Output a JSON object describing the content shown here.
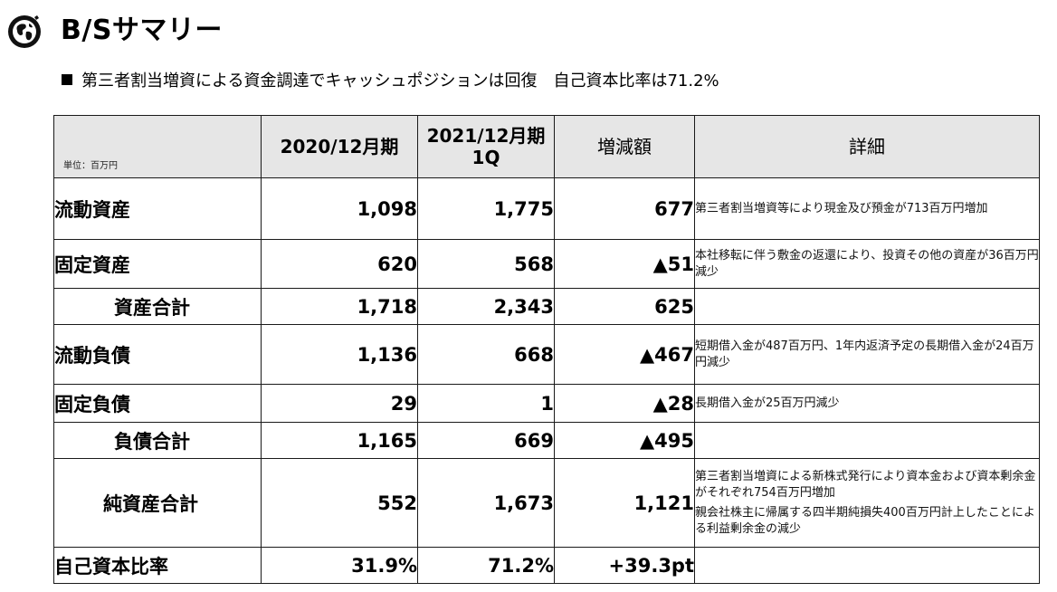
{
  "header": {
    "title": "B/Sサマリー",
    "subtitle": "第三者割当増資による資金調達でキャッシュポジションは回復　自己資本比率は71.2%"
  },
  "table": {
    "unit_label": "単位：百万円",
    "headers": {
      "col1": "2020/12月期",
      "col2_line1": "2021/12月期",
      "col2_line2": "1Q",
      "col3": "増減額",
      "col4": "詳細"
    },
    "rows": [
      {
        "item": "流動資産",
        "v2020": "1,098",
        "v2021": "1,775",
        "diff": "677",
        "detail": "第三者割当増資等により現金及び預金が713百万円増加",
        "detail2": ""
      },
      {
        "item": "固定資産",
        "v2020": "620",
        "v2021": "568",
        "diff": "▲51",
        "detail": "本社移転に伴う敷金の返還により、投資その他の資産が36百万円減少",
        "detail2": ""
      },
      {
        "item": "資産合計",
        "v2020": "1,718",
        "v2021": "2,343",
        "diff": "625",
        "detail": "",
        "detail2": ""
      },
      {
        "item": "流動負債",
        "v2020": "1,136",
        "v2021": "668",
        "diff": "▲467",
        "detail": "短期借入金が487百万円、1年内返済予定の長期借入金が24百万円減少",
        "detail2": ""
      },
      {
        "item": "固定負債",
        "v2020": "29",
        "v2021": "1",
        "diff": "▲28",
        "detail": "長期借入金が25百万円減少",
        "detail2": ""
      },
      {
        "item": "負債合計",
        "v2020": "1,165",
        "v2021": "669",
        "diff": "▲495",
        "detail": "",
        "detail2": ""
      },
      {
        "item": "純資産合計",
        "v2020": "552",
        "v2021": "1,673",
        "diff": "1,121",
        "detail": "第三者割当増資による新株式発行により資本金および資本剰余金がそれぞれ754百万円増加",
        "detail2": "親会社株主に帰属する四半期純損失400百万円計上したことによる利益剰余金の減少"
      },
      {
        "item": "自己資本比率",
        "v2020": "31.9%",
        "v2021": "71.2%",
        "diff": "+39.3pt",
        "detail": "",
        "detail2": ""
      }
    ]
  },
  "colors": {
    "header_bg": "#e6e6e6",
    "border": "#1a1a1a",
    "text": "#000000"
  },
  "icons": {
    "logo": "globe-logo-icon"
  }
}
